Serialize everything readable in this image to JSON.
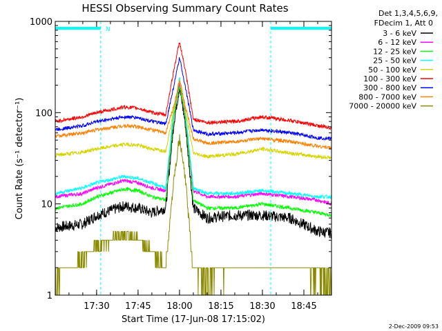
{
  "chart_data": {
    "type": "line",
    "title": "HESSI Observing Summary Count Rates",
    "xlabel": "Start Time (17-Jun-08 17:15:02)",
    "ylabel": "Count Rate (s⁻¹ detector⁻¹)",
    "yscale": "log",
    "ylim": [
      1,
      1000
    ],
    "xlim": [
      "17:15:02",
      "18:55:00"
    ],
    "x_ticks": [
      "17:30",
      "17:45",
      "18:00",
      "18:15",
      "18:30",
      "18:45"
    ],
    "y_ticks": [
      "1",
      "10",
      "100",
      "1000"
    ],
    "grid": false,
    "legend_position": "top-right, outside plot",
    "legend_header": [
      "Det 1,3,4,5,6,9,",
      "FDecim 1, Att 0"
    ],
    "timestamp": "2-Dec-2009 09:53",
    "night_marker_label": "N",
    "annotations": {
      "night_intervals": [
        [
          "17:15:02",
          "17:31:30"
        ],
        [
          "18:33:00",
          "18:55:00"
        ]
      ],
      "night_bar_color": "#00ffff"
    },
    "peak_time": "18:00",
    "series": [
      {
        "name": "3 - 6 keV",
        "color": "#000000",
        "x": [
          "17:15",
          "17:25",
          "17:30",
          "17:40",
          "17:45",
          "17:50",
          "17:55",
          "17:58",
          "18:00",
          "18:02",
          "18:05",
          "18:10",
          "18:20",
          "18:30",
          "18:40",
          "18:50",
          "18:55"
        ],
        "values": [
          5.5,
          6,
          7.5,
          9.5,
          9,
          8,
          9,
          80,
          190,
          80,
          9,
          7,
          7.5,
          7.5,
          7,
          5,
          4.8
        ]
      },
      {
        "name": "6 - 12 keV",
        "color": "#ff00ff",
        "x": [
          "17:15",
          "17:25",
          "17:30",
          "17:40",
          "17:45",
          "17:50",
          "17:55",
          "17:58",
          "18:00",
          "18:02",
          "18:05",
          "18:10",
          "18:20",
          "18:30",
          "18:40",
          "18:50",
          "18:55"
        ],
        "values": [
          12,
          13,
          15,
          18,
          17,
          15,
          14,
          100,
          210,
          100,
          14,
          12,
          12,
          13,
          12,
          11,
          10
        ]
      },
      {
        "name": "12 - 25 keV",
        "color": "#00ff00",
        "x": [
          "17:15",
          "17:25",
          "17:30",
          "17:40",
          "17:45",
          "17:50",
          "17:55",
          "17:58",
          "18:00",
          "18:02",
          "18:05",
          "18:10",
          "18:20",
          "18:30",
          "18:40",
          "18:50",
          "18:55"
        ],
        "values": [
          9,
          10,
          12,
          14.5,
          14,
          12,
          11,
          95,
          200,
          95,
          11,
          9,
          9,
          10,
          9,
          8,
          7.5
        ]
      },
      {
        "name": "25 - 50 keV",
        "color": "#00ffff",
        "x": [
          "17:15",
          "17:25",
          "17:30",
          "17:40",
          "17:45",
          "17:50",
          "17:55",
          "17:58",
          "18:00",
          "18:02",
          "18:05",
          "18:10",
          "18:20",
          "18:30",
          "18:40",
          "18:50",
          "18:55"
        ],
        "values": [
          13,
          15,
          17,
          20,
          19,
          17,
          15,
          110,
          240,
          110,
          15,
          13,
          13,
          14,
          13,
          12,
          12
        ]
      },
      {
        "name": "50 - 100 keV",
        "color": "#d4d400",
        "x": [
          "17:15",
          "17:25",
          "17:30",
          "17:40",
          "17:45",
          "17:50",
          "17:55",
          "17:58",
          "18:00",
          "18:02",
          "18:05",
          "18:10",
          "18:20",
          "18:30",
          "18:40",
          "18:50",
          "18:55"
        ],
        "values": [
          34,
          37,
          40,
          45,
          44,
          40,
          38,
          110,
          230,
          110,
          36,
          33,
          35,
          40,
          36,
          33,
          32
        ]
      },
      {
        "name": "100 - 300 keV",
        "color": "#ff0000",
        "x": [
          "17:15",
          "17:25",
          "17:30",
          "17:40",
          "17:45",
          "17:50",
          "17:55",
          "17:58",
          "18:00",
          "18:02",
          "18:05",
          "18:10",
          "18:20",
          "18:30",
          "18:40",
          "18:50",
          "18:55"
        ],
        "values": [
          80,
          90,
          100,
          115,
          112,
          100,
          95,
          300,
          600,
          300,
          85,
          78,
          80,
          90,
          82,
          72,
          68
        ]
      },
      {
        "name": "300 - 800 keV",
        "color": "#0000ff",
        "x": [
          "17:15",
          "17:25",
          "17:30",
          "17:40",
          "17:45",
          "17:50",
          "17:55",
          "17:58",
          "18:00",
          "18:02",
          "18:05",
          "18:10",
          "18:20",
          "18:30",
          "18:40",
          "18:50",
          "18:55"
        ],
        "values": [
          65,
          72,
          80,
          90,
          88,
          80,
          75,
          200,
          400,
          200,
          65,
          58,
          60,
          65,
          60,
          53,
          52
        ]
      },
      {
        "name": "800 - 7000 keV",
        "color": "#ff8000",
        "x": [
          "17:15",
          "17:25",
          "17:30",
          "17:40",
          "17:45",
          "17:50",
          "17:55",
          "17:58",
          "18:00",
          "18:02",
          "18:05",
          "18:10",
          "18:20",
          "18:30",
          "18:40",
          "18:50",
          "18:55"
        ],
        "values": [
          55,
          60,
          65,
          72,
          70,
          65,
          60,
          120,
          230,
          120,
          52,
          46,
          48,
          52,
          48,
          43,
          41
        ]
      },
      {
        "name": "7000 - 20000 keV",
        "color": "#8b8b00",
        "x": [
          "17:15",
          "17:25",
          "17:30",
          "17:40",
          "17:45",
          "17:50",
          "17:55",
          "17:58",
          "18:00",
          "18:02",
          "18:05",
          "18:10",
          "18:20",
          "18:30",
          "18:40",
          "18:50",
          "18:55"
        ],
        "values": [
          1.5,
          2.5,
          3.5,
          4.5,
          4,
          3,
          2,
          20,
          52,
          20,
          1.8,
          1.5,
          1.8,
          2.2,
          2,
          1.6,
          1.5
        ]
      }
    ]
  }
}
